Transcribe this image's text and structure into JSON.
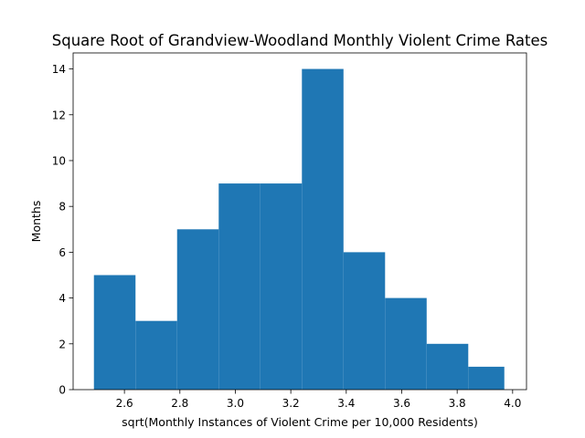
{
  "chart_data": {
    "type": "bar",
    "title": "Square Root of Grandview-Woodland Monthly Violent Crime Rates",
    "xlabel": "sqrt(Monthly Instances of Violent Crime per 10,000 Residents)",
    "ylabel": "Months",
    "bin_edges": [
      2.49,
      2.64,
      2.79,
      2.94,
      3.09,
      3.24,
      3.39,
      3.54,
      3.69,
      3.84,
      3.97
    ],
    "values": [
      5,
      3,
      7,
      9,
      9,
      14,
      6,
      4,
      2,
      1
    ],
    "xlim": [
      2.415,
      4.05
    ],
    "ylim": [
      0,
      14.7
    ],
    "xticks": [
      "2.6",
      "2.8",
      "3.0",
      "3.2",
      "3.4",
      "3.6",
      "3.8",
      "4.0"
    ],
    "yticks": [
      "0",
      "2",
      "4",
      "6",
      "8",
      "10",
      "12",
      "14"
    ],
    "bar_color": "#1f77b4",
    "grid": false
  }
}
